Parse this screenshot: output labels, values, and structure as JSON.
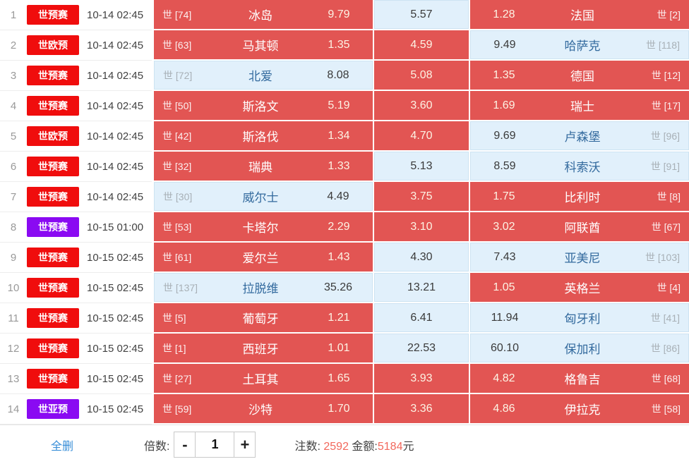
{
  "colors": {
    "selected_cell": "#e25553",
    "unselected_cell": "#e1f0fb",
    "badge_red": "#f00d0d",
    "badge_purple": "#8a0af2",
    "link_blue": "#3a8fd8",
    "highlight_number": "#f2685c"
  },
  "rows": [
    {
      "num": "1",
      "league": "世预赛",
      "league_color": "red",
      "time": "10-14 02:45",
      "home_rank": "世 [74]",
      "home_team": "冰岛",
      "home_odds": "9.79",
      "home_selected": true,
      "draw_odds": "5.57",
      "draw_selected": false,
      "away_odds": "1.28",
      "away_team": "法国",
      "away_rank": "世 [2]",
      "away_selected": true
    },
    {
      "num": "2",
      "league": "世欧预",
      "league_color": "red",
      "time": "10-14 02:45",
      "home_rank": "世 [63]",
      "home_team": "马其顿",
      "home_odds": "1.35",
      "home_selected": true,
      "draw_odds": "4.59",
      "draw_selected": true,
      "away_odds": "9.49",
      "away_team": "哈萨克",
      "away_rank": "世 [118]",
      "away_selected": false
    },
    {
      "num": "3",
      "league": "世预赛",
      "league_color": "red",
      "time": "10-14 02:45",
      "home_rank": "世 [72]",
      "home_team": "北爱",
      "home_odds": "8.08",
      "home_selected": false,
      "draw_odds": "5.08",
      "draw_selected": true,
      "away_odds": "1.35",
      "away_team": "德国",
      "away_rank": "世 [12]",
      "away_selected": true
    },
    {
      "num": "4",
      "league": "世预赛",
      "league_color": "red",
      "time": "10-14 02:45",
      "home_rank": "世 [50]",
      "home_team": "斯洛文",
      "home_odds": "5.19",
      "home_selected": true,
      "draw_odds": "3.60",
      "draw_selected": true,
      "away_odds": "1.69",
      "away_team": "瑞士",
      "away_rank": "世 [17]",
      "away_selected": true
    },
    {
      "num": "5",
      "league": "世欧预",
      "league_color": "red",
      "time": "10-14 02:45",
      "home_rank": "世 [42]",
      "home_team": "斯洛伐",
      "home_odds": "1.34",
      "home_selected": true,
      "draw_odds": "4.70",
      "draw_selected": true,
      "away_odds": "9.69",
      "away_team": "卢森堡",
      "away_rank": "世 [96]",
      "away_selected": false
    },
    {
      "num": "6",
      "league": "世预赛",
      "league_color": "red",
      "time": "10-14 02:45",
      "home_rank": "世 [32]",
      "home_team": "瑞典",
      "home_odds": "1.33",
      "home_selected": true,
      "draw_odds": "5.13",
      "draw_selected": false,
      "away_odds": "8.59",
      "away_team": "科索沃",
      "away_rank": "世 [91]",
      "away_selected": false
    },
    {
      "num": "7",
      "league": "世预赛",
      "league_color": "red",
      "time": "10-14 02:45",
      "home_rank": "世 [30]",
      "home_team": "威尔士",
      "home_odds": "4.49",
      "home_selected": false,
      "draw_odds": "3.75",
      "draw_selected": true,
      "away_odds": "1.75",
      "away_team": "比利时",
      "away_rank": "世 [8]",
      "away_selected": true
    },
    {
      "num": "8",
      "league": "世预赛",
      "league_color": "purple",
      "time": "10-15 01:00",
      "home_rank": "世 [53]",
      "home_team": "卡塔尔",
      "home_odds": "2.29",
      "home_selected": true,
      "draw_odds": "3.10",
      "draw_selected": true,
      "away_odds": "3.02",
      "away_team": "阿联酋",
      "away_rank": "世 [67]",
      "away_selected": true
    },
    {
      "num": "9",
      "league": "世预赛",
      "league_color": "red",
      "time": "10-15 02:45",
      "home_rank": "世 [61]",
      "home_team": "爱尔兰",
      "home_odds": "1.43",
      "home_selected": true,
      "draw_odds": "4.30",
      "draw_selected": false,
      "away_odds": "7.43",
      "away_team": "亚美尼",
      "away_rank": "世 [103]",
      "away_selected": false
    },
    {
      "num": "10",
      "league": "世预赛",
      "league_color": "red",
      "time": "10-15 02:45",
      "home_rank": "世 [137]",
      "home_team": "拉脱维",
      "home_odds": "35.26",
      "home_selected": false,
      "draw_odds": "13.21",
      "draw_selected": false,
      "away_odds": "1.05",
      "away_team": "英格兰",
      "away_rank": "世 [4]",
      "away_selected": true
    },
    {
      "num": "11",
      "league": "世预赛",
      "league_color": "red",
      "time": "10-15 02:45",
      "home_rank": "世 [5]",
      "home_team": "葡萄牙",
      "home_odds": "1.21",
      "home_selected": true,
      "draw_odds": "6.41",
      "draw_selected": false,
      "away_odds": "11.94",
      "away_team": "匈牙利",
      "away_rank": "世 [41]",
      "away_selected": false
    },
    {
      "num": "12",
      "league": "世预赛",
      "league_color": "red",
      "time": "10-15 02:45",
      "home_rank": "世 [1]",
      "home_team": "西班牙",
      "home_odds": "1.01",
      "home_selected": true,
      "draw_odds": "22.53",
      "draw_selected": false,
      "away_odds": "60.10",
      "away_team": "保加利",
      "away_rank": "世 [86]",
      "away_selected": false
    },
    {
      "num": "13",
      "league": "世预赛",
      "league_color": "red",
      "time": "10-15 02:45",
      "home_rank": "世 [27]",
      "home_team": "土耳其",
      "home_odds": "1.65",
      "home_selected": true,
      "draw_odds": "3.93",
      "draw_selected": true,
      "away_odds": "4.82",
      "away_team": "格鲁吉",
      "away_rank": "世 [68]",
      "away_selected": true
    },
    {
      "num": "14",
      "league": "世亚预",
      "league_color": "purple",
      "time": "10-15 02:45",
      "home_rank": "世 [59]",
      "home_team": "沙特",
      "home_odds": "1.70",
      "home_selected": true,
      "draw_odds": "3.36",
      "draw_selected": true,
      "away_odds": "4.86",
      "away_team": "伊拉克",
      "away_rank": "世 [58]",
      "away_selected": true
    }
  ],
  "footer": {
    "delete_all": "全删",
    "multiplier_label": "倍数:",
    "minus": "-",
    "multiplier_value": "1",
    "plus": "+",
    "bets_label": "注数:",
    "bets_count": "2592",
    "amount_label": "金额:",
    "amount_value": "5184",
    "amount_unit": "元"
  }
}
